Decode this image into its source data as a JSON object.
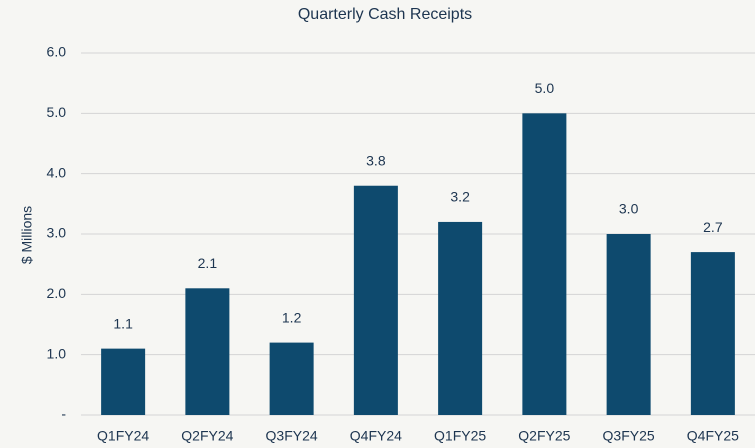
{
  "chart_data": {
    "type": "bar",
    "title": "Quarterly Cash Receipts",
    "y_label": "$ Millions",
    "categories": [
      "Q1FY24",
      "Q2FY24",
      "Q3FY24",
      "Q4FY24",
      "Q1FY25",
      "Q2FY25",
      "Q3FY25",
      "Q4FY25"
    ],
    "values": [
      1.1,
      2.1,
      1.2,
      3.8,
      3.2,
      5.0,
      3.0,
      2.7
    ],
    "value_labels": [
      "1.1",
      "2.1",
      "1.2",
      "3.8",
      "3.2",
      "5.0",
      "3.0",
      "2.7"
    ],
    "color": "#0e4a6e",
    "ylim": [
      0,
      6
    ],
    "yticks": [
      {
        "value": 0,
        "label": "-"
      },
      {
        "value": 1,
        "label": "1.0"
      },
      {
        "value": 2,
        "label": "2.0"
      },
      {
        "value": 3,
        "label": "3.0"
      },
      {
        "value": 4,
        "label": "4.0"
      },
      {
        "value": 5,
        "label": "5.0"
      },
      {
        "value": 6,
        "label": "6.0"
      }
    ],
    "grid": true
  }
}
